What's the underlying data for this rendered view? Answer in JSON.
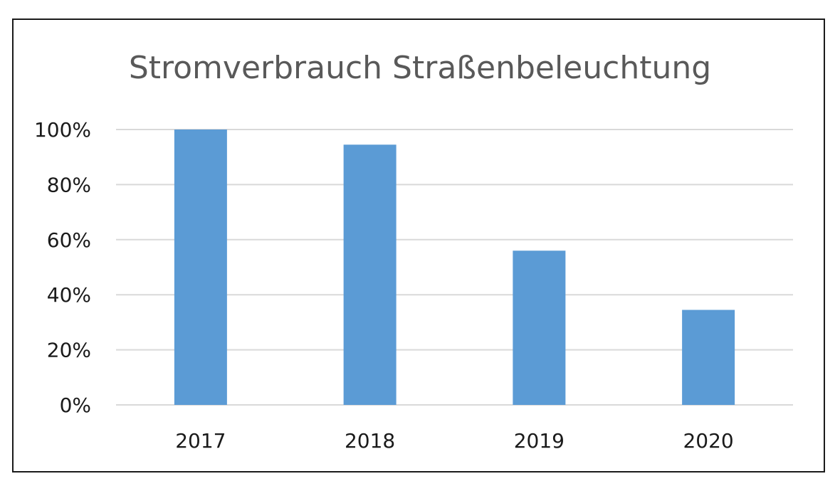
{
  "chart_data": {
    "type": "bar",
    "title": "Stromverbrauch Straßenbeleuchtung",
    "xlabel": "",
    "ylabel": "",
    "categories": [
      "2017",
      "2018",
      "2019",
      "2020"
    ],
    "values": [
      100,
      94.5,
      56,
      34.5
    ],
    "value_unit": "%",
    "ylim": [
      0,
      100
    ],
    "yticks": [
      0,
      20,
      40,
      60,
      80,
      100
    ],
    "ytick_labels": [
      "0%",
      "20%",
      "40%",
      "60%",
      "80%",
      "100%"
    ],
    "grid": true,
    "legend": "none",
    "colors": {
      "bar": "#5b9bd5",
      "grid": "#d9d9d9",
      "title": "#595959",
      "frame": "#1a1a1a"
    }
  }
}
